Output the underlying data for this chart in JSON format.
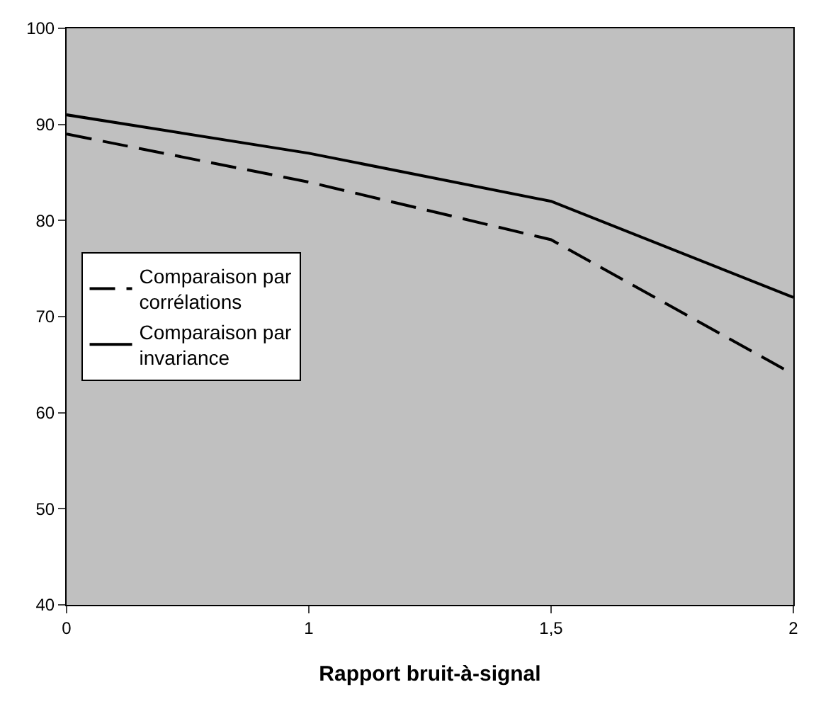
{
  "chart_data": {
    "type": "line",
    "xlabel": "Rapport bruit-à-signal",
    "categories": [
      "0",
      "1",
      "1,5",
      "2"
    ],
    "series": [
      {
        "name": "Comparaison par corrélations",
        "color": "#000000",
        "line_style": "dashed",
        "values": [
          89,
          84,
          78,
          64
        ]
      },
      {
        "name": "Comparaison par invariance",
        "color": "#000000",
        "line_style": "solid",
        "values": [
          91,
          87,
          82,
          72
        ]
      }
    ],
    "ylim": [
      40,
      100
    ],
    "yticks": [
      40,
      50,
      60,
      70,
      80,
      90,
      100
    ],
    "grid": false,
    "legend": "left",
    "marker": "none"
  }
}
